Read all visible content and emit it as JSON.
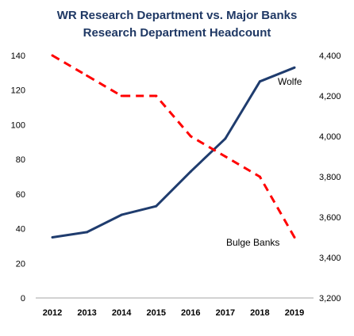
{
  "chart_data": {
    "type": "line",
    "title": "WR Research Department vs. Major Banks",
    "subtitle": "Research Department Headcount",
    "categories": [
      "2012",
      "2013",
      "2014",
      "2015",
      "2016",
      "2017",
      "2018",
      "2019"
    ],
    "left_axis": {
      "ylim": [
        0,
        140
      ],
      "ticks": [
        "0",
        "20",
        "40",
        "60",
        "80",
        "100",
        "120",
        "140"
      ]
    },
    "right_axis": {
      "ylim": [
        3200,
        4400
      ],
      "ticks": [
        "3,200",
        "3,400",
        "3,600",
        "3,800",
        "4,000",
        "4,200",
        "4,400"
      ]
    },
    "grid": false,
    "series": [
      {
        "name": "Wolfe",
        "axis": "left",
        "style": "solid",
        "color": "#1f3c6e",
        "values": [
          35,
          38,
          48,
          53,
          73,
          92,
          125,
          133
        ]
      },
      {
        "name": "Bulge Banks",
        "axis": "right",
        "style": "dashed",
        "color": "#ff0000",
        "values": [
          4400,
          4300,
          4200,
          4200,
          4000,
          3900,
          3800,
          3500
        ]
      }
    ]
  }
}
